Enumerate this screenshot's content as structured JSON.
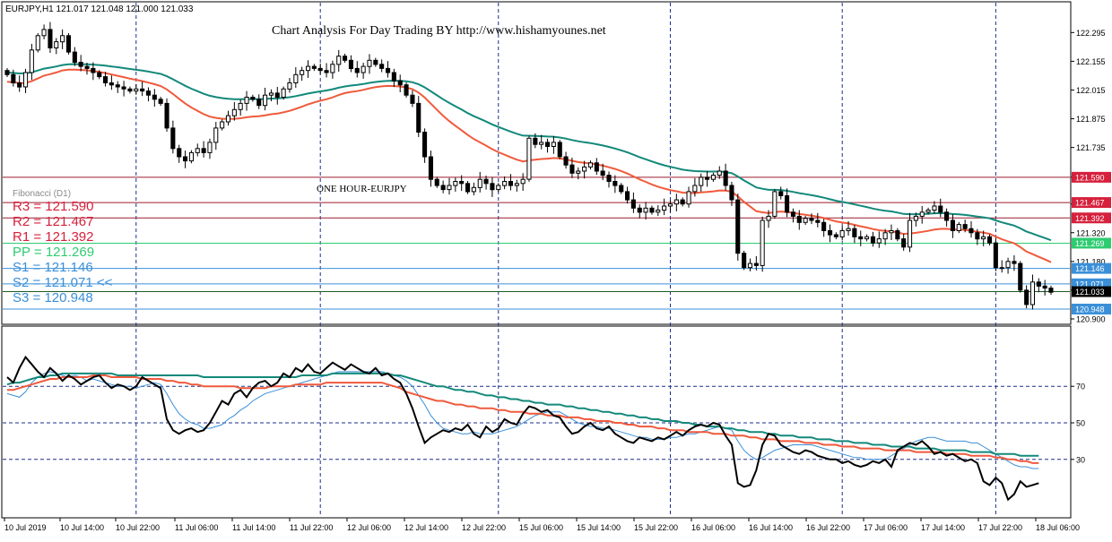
{
  "header": {
    "symbol_line": "EURJPY,H1  121.017 121.048 121.000 121.033",
    "title": "Chart Analysis For Day Trading BY http://www.hishamyounes.net"
  },
  "annotations": {
    "timeframe_label": "ONE HOUR-EURJPY"
  },
  "fibonacci": {
    "title": "Fibonacci (D1)",
    "levels": [
      {
        "label": "R3 = 121.590",
        "value": 121.59,
        "color": "#d6203c",
        "line_color": "#9b1c2e"
      },
      {
        "label": "R2 = 121.467",
        "value": 121.467,
        "color": "#d6203c",
        "line_color": "#9b1c2e"
      },
      {
        "label": "R1 = 121.392",
        "value": 121.392,
        "color": "#d6203c",
        "line_color": "#9b1c2e"
      },
      {
        "label": "PP = 121.269",
        "value": 121.269,
        "color": "#2ecc71",
        "line_color": "#2ecc71"
      },
      {
        "label": "S1 = 121.146",
        "value": 121.146,
        "color": "#3a8fd8",
        "line_color": "#3a8fd8"
      },
      {
        "label": "S2 = 121.071 <<",
        "value": 121.071,
        "color": "#3a8fd8",
        "line_color": "#3a8fd8"
      },
      {
        "label": "S3 = 120.948",
        "value": 120.948,
        "color": "#3a8fd8",
        "line_color": "#3a8fd8"
      }
    ],
    "axis_tags": [
      {
        "text": "121.590",
        "value": 121.59,
        "bg": "#d6203c"
      },
      {
        "text": "121.467",
        "value": 121.467,
        "bg": "#d6203c"
      },
      {
        "text": "121.392",
        "value": 121.392,
        "bg": "#d6203c"
      },
      {
        "text": "121.269",
        "value": 121.269,
        "bg": "#2ecc71"
      },
      {
        "text": "121.146",
        "value": 121.146,
        "bg": "#3a8fd8"
      },
      {
        "text": "121.071",
        "value": 121.071,
        "bg": "#3a8fd8"
      },
      {
        "text": "121.033",
        "value": 121.033,
        "bg": "#000000"
      },
      {
        "text": "120.948",
        "value": 120.948,
        "bg": "#3a8fd8"
      }
    ]
  },
  "colors": {
    "ma_fast": "#f05a3c",
    "ma_slow": "#12897a",
    "candle": "#000000",
    "grid_dashed": "#1b2f8c",
    "rsi": "#000000",
    "rsi_signal": "#3a8fd8",
    "current_price_line": "#1f5a1f"
  },
  "chart_data": [
    {
      "type": "candlestick",
      "ylim": [
        120.9,
        122.34
      ],
      "y_ticks": [
        "122.295",
        "122.155",
        "122.015",
        "121.875",
        "121.735",
        "121.590",
        "121.460",
        "121.320",
        "121.180",
        "121.040",
        "120.900"
      ],
      "y_tick_values": [
        122.295,
        122.155,
        122.015,
        121.875,
        121.735,
        121.59,
        121.46,
        121.32,
        121.18,
        121.04,
        120.9
      ],
      "current_price": 121.033,
      "series": [
        {
          "name": "Close",
          "values": [
            122.09,
            122.05,
            122.03,
            122.1,
            122.21,
            122.28,
            122.31,
            122.22,
            122.25,
            122.28,
            122.2,
            122.15,
            122.13,
            122.12,
            122.1,
            122.08,
            122.05,
            122.04,
            122.03,
            122.02,
            122.01,
            122.02,
            122.01,
            121.99,
            121.97,
            121.95,
            121.83,
            121.73,
            121.69,
            121.67,
            121.71,
            121.73,
            121.71,
            121.76,
            121.83,
            121.86,
            121.89,
            121.92,
            121.95,
            121.98,
            121.97,
            121.94,
            121.99,
            122.0,
            121.98,
            122.02,
            122.05,
            122.09,
            122.11,
            122.13,
            122.12,
            122.11,
            122.1,
            122.14,
            122.18,
            122.16,
            122.12,
            122.1,
            122.13,
            122.16,
            122.14,
            122.12,
            122.1,
            122.06,
            122.04,
            121.99,
            121.95,
            121.81,
            121.69,
            121.58,
            121.55,
            121.53,
            121.55,
            121.57,
            121.56,
            121.52,
            121.54,
            121.58,
            121.56,
            121.53,
            121.55,
            121.57,
            121.55,
            121.56,
            121.58,
            121.78,
            121.75,
            121.76,
            121.74,
            121.76,
            121.69,
            121.65,
            121.61,
            121.62,
            121.64,
            121.66,
            121.62,
            121.6,
            121.57,
            121.55,
            121.52,
            121.48,
            121.44,
            121.42,
            121.44,
            121.42,
            121.43,
            121.45,
            121.46,
            121.48,
            121.46,
            121.52,
            121.55,
            121.59,
            121.58,
            121.6,
            121.62,
            121.55,
            121.48,
            121.22,
            121.15,
            121.17,
            121.16,
            121.38,
            121.4,
            121.52,
            121.5,
            121.42,
            121.4,
            121.37,
            121.39,
            121.38,
            121.37,
            121.33,
            121.31,
            121.3,
            121.33,
            121.34,
            121.3,
            121.29,
            121.3,
            121.27,
            121.29,
            121.32,
            121.33,
            121.29,
            121.25,
            121.38,
            121.4,
            121.42,
            121.43,
            121.45,
            121.42,
            121.38,
            121.33,
            121.36,
            121.34,
            121.32,
            121.29,
            121.3,
            121.27,
            121.15,
            121.15,
            121.18,
            121.17,
            121.04,
            120.97,
            121.08,
            121.06,
            121.05,
            121.03
          ]
        }
      ]
    },
    {
      "type": "line",
      "ylim": [
        0,
        100
      ],
      "y_ticks": [
        "70",
        "50",
        "30"
      ],
      "y_tick_values": [
        70,
        50,
        30
      ],
      "x_tick_labels": [
        "10 Jul 2019",
        "10 Jul 14:00",
        "10 Jul 22:00",
        "11 Jul 06:00",
        "11 Jul 14:00",
        "11 Jul 22:00",
        "12 Jul 06:00",
        "12 Jul 14:00",
        "12 Jul 22:00",
        "15 Jul 06:00",
        "15 Jul 14:00",
        "15 Jul 22:00",
        "16 Jul 06:00",
        "16 Jul 14:00",
        "16 Jul 22:00",
        "17 Jul 06:00",
        "17 Jul 14:00",
        "17 Jul 22:00",
        "18 Jul 06:00"
      ],
      "series": [
        {
          "name": "RSI",
          "values": [
            75,
            72,
            80,
            86,
            82,
            78,
            75,
            80,
            77,
            73,
            76,
            74,
            71,
            73,
            75,
            76,
            72,
            69,
            71,
            70,
            68,
            70,
            75,
            73,
            71,
            69,
            52,
            46,
            44,
            46,
            47,
            45,
            46,
            50,
            56,
            62,
            60,
            66,
            68,
            64,
            69,
            72,
            73,
            70,
            72,
            77,
            75,
            80,
            78,
            82,
            78,
            77,
            80,
            83,
            81,
            79,
            82,
            80,
            78,
            77,
            80,
            76,
            77,
            74,
            72,
            66,
            58,
            48,
            39,
            42,
            44,
            46,
            45,
            47,
            46,
            49,
            44,
            42,
            48,
            45,
            47,
            52,
            50,
            49,
            55,
            59,
            58,
            56,
            57,
            54,
            53,
            48,
            44,
            45,
            48,
            50,
            47,
            46,
            48,
            44,
            42,
            40,
            39,
            42,
            41,
            40,
            42,
            41,
            43,
            45,
            43,
            46,
            48,
            49,
            48,
            50,
            49,
            43,
            38,
            17,
            15,
            16,
            24,
            38,
            44,
            43,
            38,
            36,
            34,
            33,
            35,
            34,
            32,
            31,
            30,
            30,
            28,
            29,
            27,
            26,
            27,
            29,
            28,
            30,
            26,
            35,
            37,
            39,
            38,
            40,
            37,
            33,
            34,
            32,
            33,
            31,
            29,
            30,
            28,
            18,
            16,
            20,
            17,
            8,
            11,
            18,
            15,
            16,
            17
          ]
        },
        {
          "name": "RSI signal",
          "values": [
            66,
            65,
            64,
            67,
            72,
            75,
            77,
            78,
            77,
            76,
            75,
            76,
            75,
            73,
            74,
            73,
            72,
            71,
            70,
            70,
            70,
            69,
            70,
            71,
            72,
            71,
            66,
            60,
            55,
            52,
            50,
            49,
            47,
            47,
            48,
            49,
            52,
            54,
            57,
            59,
            62,
            64,
            66,
            67,
            68,
            69,
            70,
            71,
            72,
            73,
            74,
            75,
            76,
            77,
            78,
            78,
            78,
            78,
            78,
            78,
            78,
            78,
            77,
            76,
            75,
            73,
            70,
            65,
            60,
            54,
            50,
            47,
            46,
            45,
            44,
            44,
            45,
            44,
            44,
            44,
            45,
            46,
            47,
            48,
            50,
            52,
            54,
            55,
            56,
            56,
            56,
            54,
            52,
            50,
            49,
            48,
            48,
            47,
            47,
            46,
            45,
            44,
            43,
            42,
            42,
            41,
            41,
            41,
            42,
            42,
            43,
            44,
            44,
            45,
            46,
            47,
            48,
            47,
            46,
            40,
            35,
            32,
            30,
            31,
            33,
            35,
            36,
            37,
            38,
            38,
            38,
            38,
            37,
            36,
            35,
            34,
            33,
            32,
            31,
            31,
            30,
            30,
            30,
            30,
            32,
            34,
            36,
            38,
            40,
            41,
            42,
            42,
            41,
            40,
            40,
            40,
            40,
            39,
            39,
            37,
            35,
            33,
            31,
            29,
            27,
            26,
            26,
            25,
            25
          ]
        },
        {
          "name": "RSI MA fast",
          "values": [
            68,
            68,
            69,
            70,
            71,
            72,
            73,
            74,
            74,
            75,
            75,
            75,
            75,
            75,
            76,
            76,
            76,
            75,
            75,
            75,
            75,
            75,
            74,
            74,
            74,
            74,
            73,
            73,
            72,
            72,
            71,
            71,
            70,
            70,
            70,
            70,
            70,
            70,
            69,
            69,
            69,
            69,
            69,
            70,
            70,
            70,
            70,
            71,
            71,
            71,
            71,
            71,
            72,
            72,
            72,
            72,
            72,
            72,
            72,
            72,
            72,
            72,
            71,
            70,
            69,
            67,
            66,
            65,
            64,
            63,
            62,
            62,
            61,
            60,
            60,
            59,
            59,
            58,
            58,
            58,
            57,
            57,
            56,
            56,
            56,
            55,
            55,
            55,
            54,
            54,
            54,
            53,
            53,
            53,
            52,
            52,
            51,
            51,
            51,
            50,
            50,
            49,
            49,
            48,
            48,
            48,
            47,
            47,
            46,
            46,
            46,
            45,
            45,
            45,
            45,
            44,
            44,
            44,
            43,
            43,
            43,
            42,
            42,
            41,
            41,
            41,
            40,
            40,
            40,
            40,
            39,
            39,
            39,
            38,
            38,
            38,
            37,
            37,
            37,
            36,
            36,
            36,
            36,
            35,
            35,
            35,
            35,
            35,
            34,
            34,
            34,
            34,
            34,
            33,
            33,
            33,
            33,
            32,
            32,
            32,
            32,
            31,
            31,
            30,
            30,
            29,
            29,
            28,
            28
          ]
        },
        {
          "name": "RSI MA slow",
          "values": [
            71,
            72,
            72,
            73,
            74,
            75,
            75,
            76,
            76,
            77,
            77,
            77,
            77,
            77,
            77,
            77,
            77,
            77,
            76,
            76,
            76,
            76,
            76,
            76,
            76,
            76,
            76,
            76,
            76,
            76,
            76,
            76,
            75,
            75,
            75,
            75,
            75,
            75,
            75,
            75,
            75,
            75,
            75,
            75,
            75,
            75,
            75,
            75,
            76,
            76,
            76,
            76,
            76,
            77,
            77,
            77,
            77,
            77,
            77,
            77,
            77,
            77,
            77,
            76,
            76,
            75,
            74,
            73,
            72,
            71,
            70,
            70,
            69,
            68,
            68,
            67,
            67,
            66,
            65,
            65,
            64,
            64,
            63,
            63,
            62,
            62,
            61,
            61,
            60,
            60,
            60,
            59,
            59,
            58,
            58,
            57,
            57,
            56,
            56,
            55,
            55,
            54,
            54,
            53,
            53,
            52,
            52,
            51,
            51,
            51,
            50,
            50,
            49,
            49,
            48,
            48,
            48,
            47,
            47,
            46,
            46,
            45,
            45,
            45,
            44,
            44,
            43,
            43,
            43,
            42,
            42,
            42,
            41,
            41,
            41,
            40,
            40,
            40,
            39,
            39,
            39,
            38,
            38,
            38,
            37,
            37,
            37,
            37,
            36,
            36,
            36,
            36,
            35,
            35,
            35,
            35,
            35,
            34,
            34,
            34,
            34,
            33,
            33,
            33,
            33,
            32,
            32,
            32,
            32
          ]
        }
      ]
    }
  ]
}
